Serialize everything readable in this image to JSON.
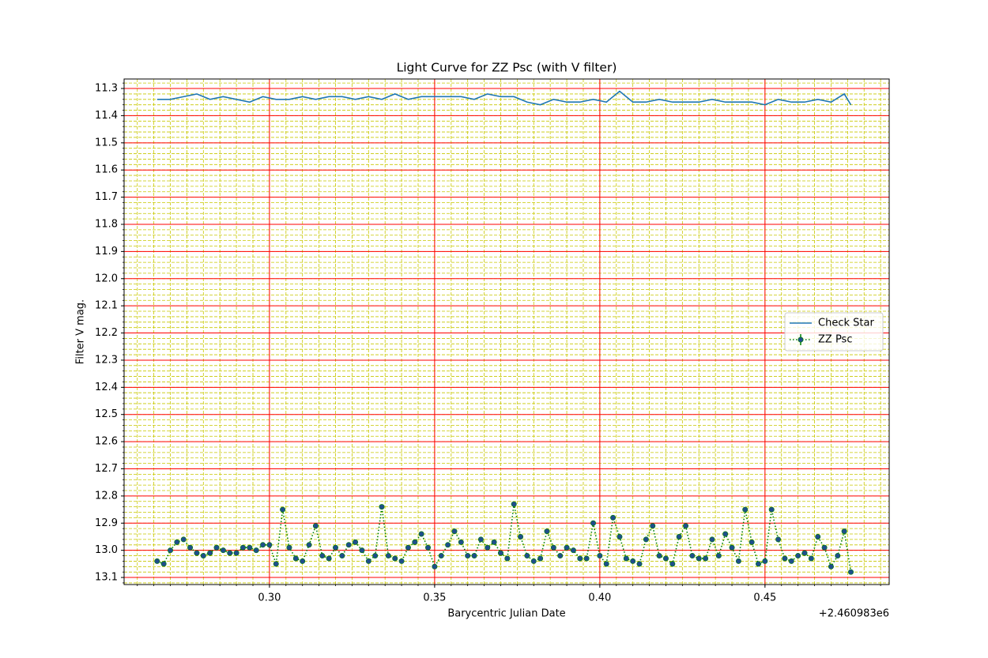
{
  "chart_data": {
    "type": "line",
    "title": "Light Curve for ZZ Psc (with V filter)",
    "xlabel": "Barycentric Julian Date",
    "ylabel": "Filter V mag.",
    "x_offset_label": "+2.460983e6",
    "xlim": [
      0.256,
      0.4876
    ],
    "ylim": [
      11.265,
      13.126
    ],
    "xticks": [
      {
        "value": 0.3,
        "label": "0.30"
      },
      {
        "value": 0.35,
        "label": "0.35"
      },
      {
        "value": 0.4,
        "label": "0.40"
      },
      {
        "value": 0.45,
        "label": "0.45"
      }
    ],
    "yticks": [
      11.3,
      11.4,
      11.5,
      11.6,
      11.7,
      11.8,
      11.9,
      {
        "value": 12,
        "label": "12.0"
      },
      12.1,
      12.2,
      12.3,
      12.4,
      12.5,
      12.6,
      12.7,
      12.8,
      12.9,
      {
        "value": 13,
        "label": "13.0"
      },
      13.1
    ],
    "xminorticks": [
      0.26,
      0.265,
      0.27,
      0.275,
      0.28,
      0.285,
      0.29,
      0.295,
      0.3,
      0.305,
      0.31,
      0.315,
      0.32,
      0.325,
      0.33,
      0.335,
      0.34,
      0.345,
      0.35,
      0.355,
      0.36,
      0.365,
      0.37,
      0.375,
      0.38,
      0.385,
      0.39,
      0.395,
      0.4,
      0.405,
      0.41,
      0.415,
      0.42,
      0.425,
      0.43,
      0.435,
      0.44,
      0.445,
      0.45,
      0.455,
      0.46,
      0.465,
      0.47,
      0.475,
      0.48,
      0.485
    ],
    "yminorticks": [
      11.28,
      11.3,
      11.32,
      11.34,
      11.36,
      11.38,
      11.4,
      11.42,
      11.44,
      11.46,
      11.48,
      11.5,
      11.52,
      11.54,
      11.56,
      11.58,
      11.6,
      11.62,
      11.64,
      11.66,
      11.68,
      11.7,
      11.72,
      11.74,
      11.76,
      11.78,
      11.8,
      11.82,
      11.84,
      11.86,
      11.88,
      11.9,
      11.92,
      11.94,
      11.96,
      11.98,
      12,
      12.02,
      12.04,
      12.06,
      12.08,
      12.1,
      12.12,
      12.14,
      12.16,
      12.18,
      12.2,
      12.22,
      12.24,
      12.26,
      12.28,
      12.3,
      12.32,
      12.34,
      12.36,
      12.38,
      12.4,
      12.42,
      12.44,
      12.46,
      12.48,
      12.5,
      12.52,
      12.54,
      12.56,
      12.58,
      12.6,
      12.62,
      12.64,
      12.66,
      12.68,
      12.7,
      12.72,
      12.74,
      12.76,
      12.78,
      12.8,
      12.82,
      12.84,
      12.86,
      12.88,
      12.9,
      12.92,
      12.94,
      12.96,
      12.98,
      13,
      13.02,
      13.04,
      13.06,
      13.08,
      13.1,
      13.12
    ],
    "grid_major_color": "red",
    "grid_minor_color": "#c8c800",
    "legend": "center right",
    "series": [
      {
        "name": "Check Star",
        "color": "#1f77b4",
        "style": "solid",
        "x": [
          0.266,
          0.27,
          0.274,
          0.278,
          0.282,
          0.286,
          0.29,
          0.294,
          0.298,
          0.302,
          0.306,
          0.31,
          0.314,
          0.318,
          0.322,
          0.326,
          0.33,
          0.334,
          0.338,
          0.342,
          0.346,
          0.35,
          0.354,
          0.358,
          0.362,
          0.366,
          0.37,
          0.374,
          0.378,
          0.382,
          0.386,
          0.39,
          0.394,
          0.398,
          0.402,
          0.406,
          0.41,
          0.414,
          0.418,
          0.422,
          0.426,
          0.43,
          0.434,
          0.438,
          0.442,
          0.446,
          0.45,
          0.454,
          0.458,
          0.462,
          0.466,
          0.47,
          0.474,
          0.476
        ],
        "values": [
          11.34,
          11.34,
          11.33,
          11.32,
          11.34,
          11.33,
          11.34,
          11.35,
          11.33,
          11.34,
          11.34,
          11.33,
          11.34,
          11.33,
          11.33,
          11.34,
          11.33,
          11.34,
          11.32,
          11.34,
          11.33,
          11.33,
          11.33,
          11.33,
          11.34,
          11.32,
          11.33,
          11.33,
          11.35,
          11.36,
          11.34,
          11.35,
          11.35,
          11.34,
          11.35,
          11.31,
          11.35,
          11.35,
          11.34,
          11.35,
          11.35,
          11.35,
          11.34,
          11.35,
          11.35,
          11.35,
          11.36,
          11.34,
          11.35,
          11.35,
          11.34,
          11.35,
          11.32,
          11.36
        ]
      },
      {
        "name": "ZZ Psc",
        "color": "green",
        "marker_color": "#1f4e8c",
        "style": "dotted",
        "yerr": 0.006,
        "x": [
          0.266,
          0.268,
          0.27,
          0.272,
          0.274,
          0.276,
          0.278,
          0.28,
          0.282,
          0.284,
          0.286,
          0.288,
          0.29,
          0.292,
          0.294,
          0.296,
          0.298,
          0.3,
          0.302,
          0.304,
          0.306,
          0.308,
          0.31,
          0.312,
          0.314,
          0.316,
          0.318,
          0.32,
          0.322,
          0.324,
          0.326,
          0.328,
          0.33,
          0.332,
          0.334,
          0.336,
          0.338,
          0.34,
          0.342,
          0.344,
          0.346,
          0.348,
          0.35,
          0.352,
          0.354,
          0.356,
          0.358,
          0.36,
          0.362,
          0.364,
          0.366,
          0.368,
          0.37,
          0.372,
          0.374,
          0.376,
          0.378,
          0.38,
          0.382,
          0.384,
          0.386,
          0.388,
          0.39,
          0.392,
          0.394,
          0.396,
          0.398,
          0.4,
          0.402,
          0.404,
          0.406,
          0.408,
          0.41,
          0.412,
          0.414,
          0.416,
          0.418,
          0.42,
          0.422,
          0.424,
          0.426,
          0.428,
          0.43,
          0.432,
          0.434,
          0.436,
          0.438,
          0.44,
          0.442,
          0.444,
          0.446,
          0.448,
          0.45,
          0.452,
          0.454,
          0.456,
          0.458,
          0.46,
          0.462,
          0.464,
          0.466,
          0.468,
          0.47,
          0.472,
          0.474,
          0.476
        ],
        "values": [
          13.04,
          13.05,
          13.0,
          12.97,
          12.96,
          12.99,
          13.01,
          13.02,
          13.01,
          12.99,
          13.0,
          13.01,
          13.01,
          12.99,
          12.99,
          13.0,
          12.98,
          12.98,
          13.05,
          12.85,
          12.99,
          13.03,
          13.04,
          12.98,
          12.91,
          13.02,
          13.03,
          12.99,
          13.02,
          12.98,
          12.97,
          13.0,
          13.04,
          13.02,
          12.84,
          13.02,
          13.03,
          13.04,
          12.99,
          12.97,
          12.94,
          12.99,
          13.06,
          13.02,
          12.98,
          12.93,
          12.97,
          13.02,
          13.02,
          12.96,
          12.99,
          12.97,
          13.01,
          13.03,
          12.83,
          12.95,
          13.02,
          13.04,
          13.03,
          12.93,
          12.99,
          13.02,
          12.99,
          13.0,
          13.03,
          13.03,
          12.9,
          13.02,
          13.05,
          12.88,
          12.95,
          13.03,
          13.04,
          13.05,
          12.96,
          12.91,
          13.02,
          13.03,
          13.05,
          12.95,
          12.91,
          13.02,
          13.03,
          13.03,
          12.96,
          13.02,
          12.94,
          12.99,
          13.04,
          12.85,
          12.97,
          13.05,
          13.04,
          12.85,
          12.96,
          13.03,
          13.04,
          13.02,
          13.01,
          13.03,
          12.95,
          12.99,
          13.06,
          13.02,
          12.93,
          13.08
        ]
      }
    ]
  }
}
